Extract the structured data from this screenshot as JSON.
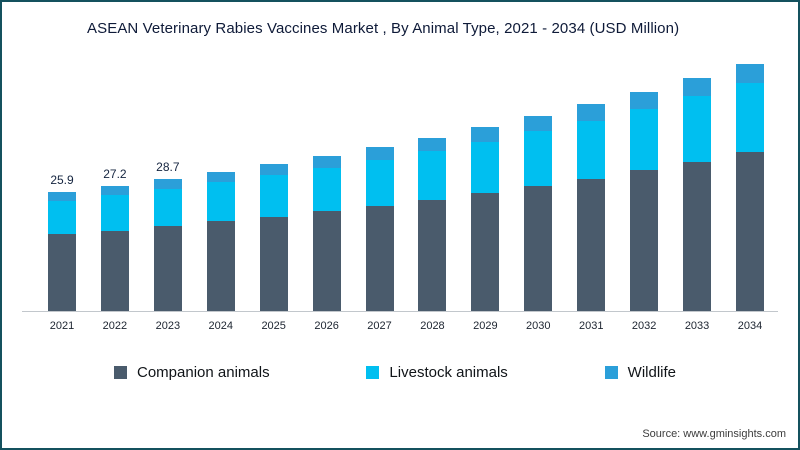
{
  "title": "ASEAN Veterinary Rabies Vaccines Market , By Animal Type, 2021 - 2034 (USD Million)",
  "source": "Source: www.gminsights.com",
  "colors": {
    "border": "#14515e",
    "companion": "#4a5b6c",
    "livestock": "#00bff0",
    "wildlife": "#2b9fd9"
  },
  "legend": [
    {
      "label": "Companion animals",
      "color": "#4a5b6c"
    },
    {
      "label": "Livestock animals",
      "color": "#00bff0"
    },
    {
      "label": "Wildlife",
      "color": "#2b9fd9"
    }
  ],
  "chart_data": {
    "type": "bar",
    "stacked": true,
    "title": "ASEAN Veterinary Rabies Vaccines Market , By Animal Type, 2021 - 2034 (USD Million)",
    "xlabel": "",
    "ylabel": "USD Million",
    "ylim": [
      0,
      60
    ],
    "grid": false,
    "legend_position": "bottom",
    "categories": [
      "2021",
      "2022",
      "2023",
      "2024",
      "2025",
      "2026",
      "2027",
      "2028",
      "2029",
      "2030",
      "2031",
      "2032",
      "2033",
      "2034"
    ],
    "data_labels": [
      "25.9",
      "27.2",
      "28.7",
      "",
      "",
      "",
      "",
      "",
      "",
      "",
      "",
      "",
      "",
      ""
    ],
    "totals": [
      25.9,
      27.2,
      28.7,
      30.2,
      31.9,
      33.7,
      35.6,
      37.7,
      39.9,
      42.3,
      44.9,
      47.6,
      50.6,
      53.8
    ],
    "series": [
      {
        "key": "companion",
        "name": "Companion animals",
        "color": "#4a5b6c",
        "values": [
          16.7,
          17.5,
          18.5,
          19.5,
          20.5,
          21.7,
          22.9,
          24.2,
          25.6,
          27.2,
          28.8,
          30.6,
          32.5,
          34.5
        ]
      },
      {
        "key": "livestock",
        "name": "Livestock animals",
        "color": "#00bff0",
        "values": [
          7.3,
          7.7,
          8.1,
          8.5,
          9.0,
          9.5,
          10.0,
          10.6,
          11.2,
          11.9,
          12.6,
          13.4,
          14.2,
          15.1
        ]
      },
      {
        "key": "wildlife",
        "name": "Wildlife",
        "color": "#2b9fd9",
        "values": [
          1.9,
          2.0,
          2.1,
          2.2,
          2.4,
          2.5,
          2.7,
          2.9,
          3.1,
          3.2,
          3.5,
          3.6,
          3.9,
          4.2
        ]
      }
    ]
  }
}
